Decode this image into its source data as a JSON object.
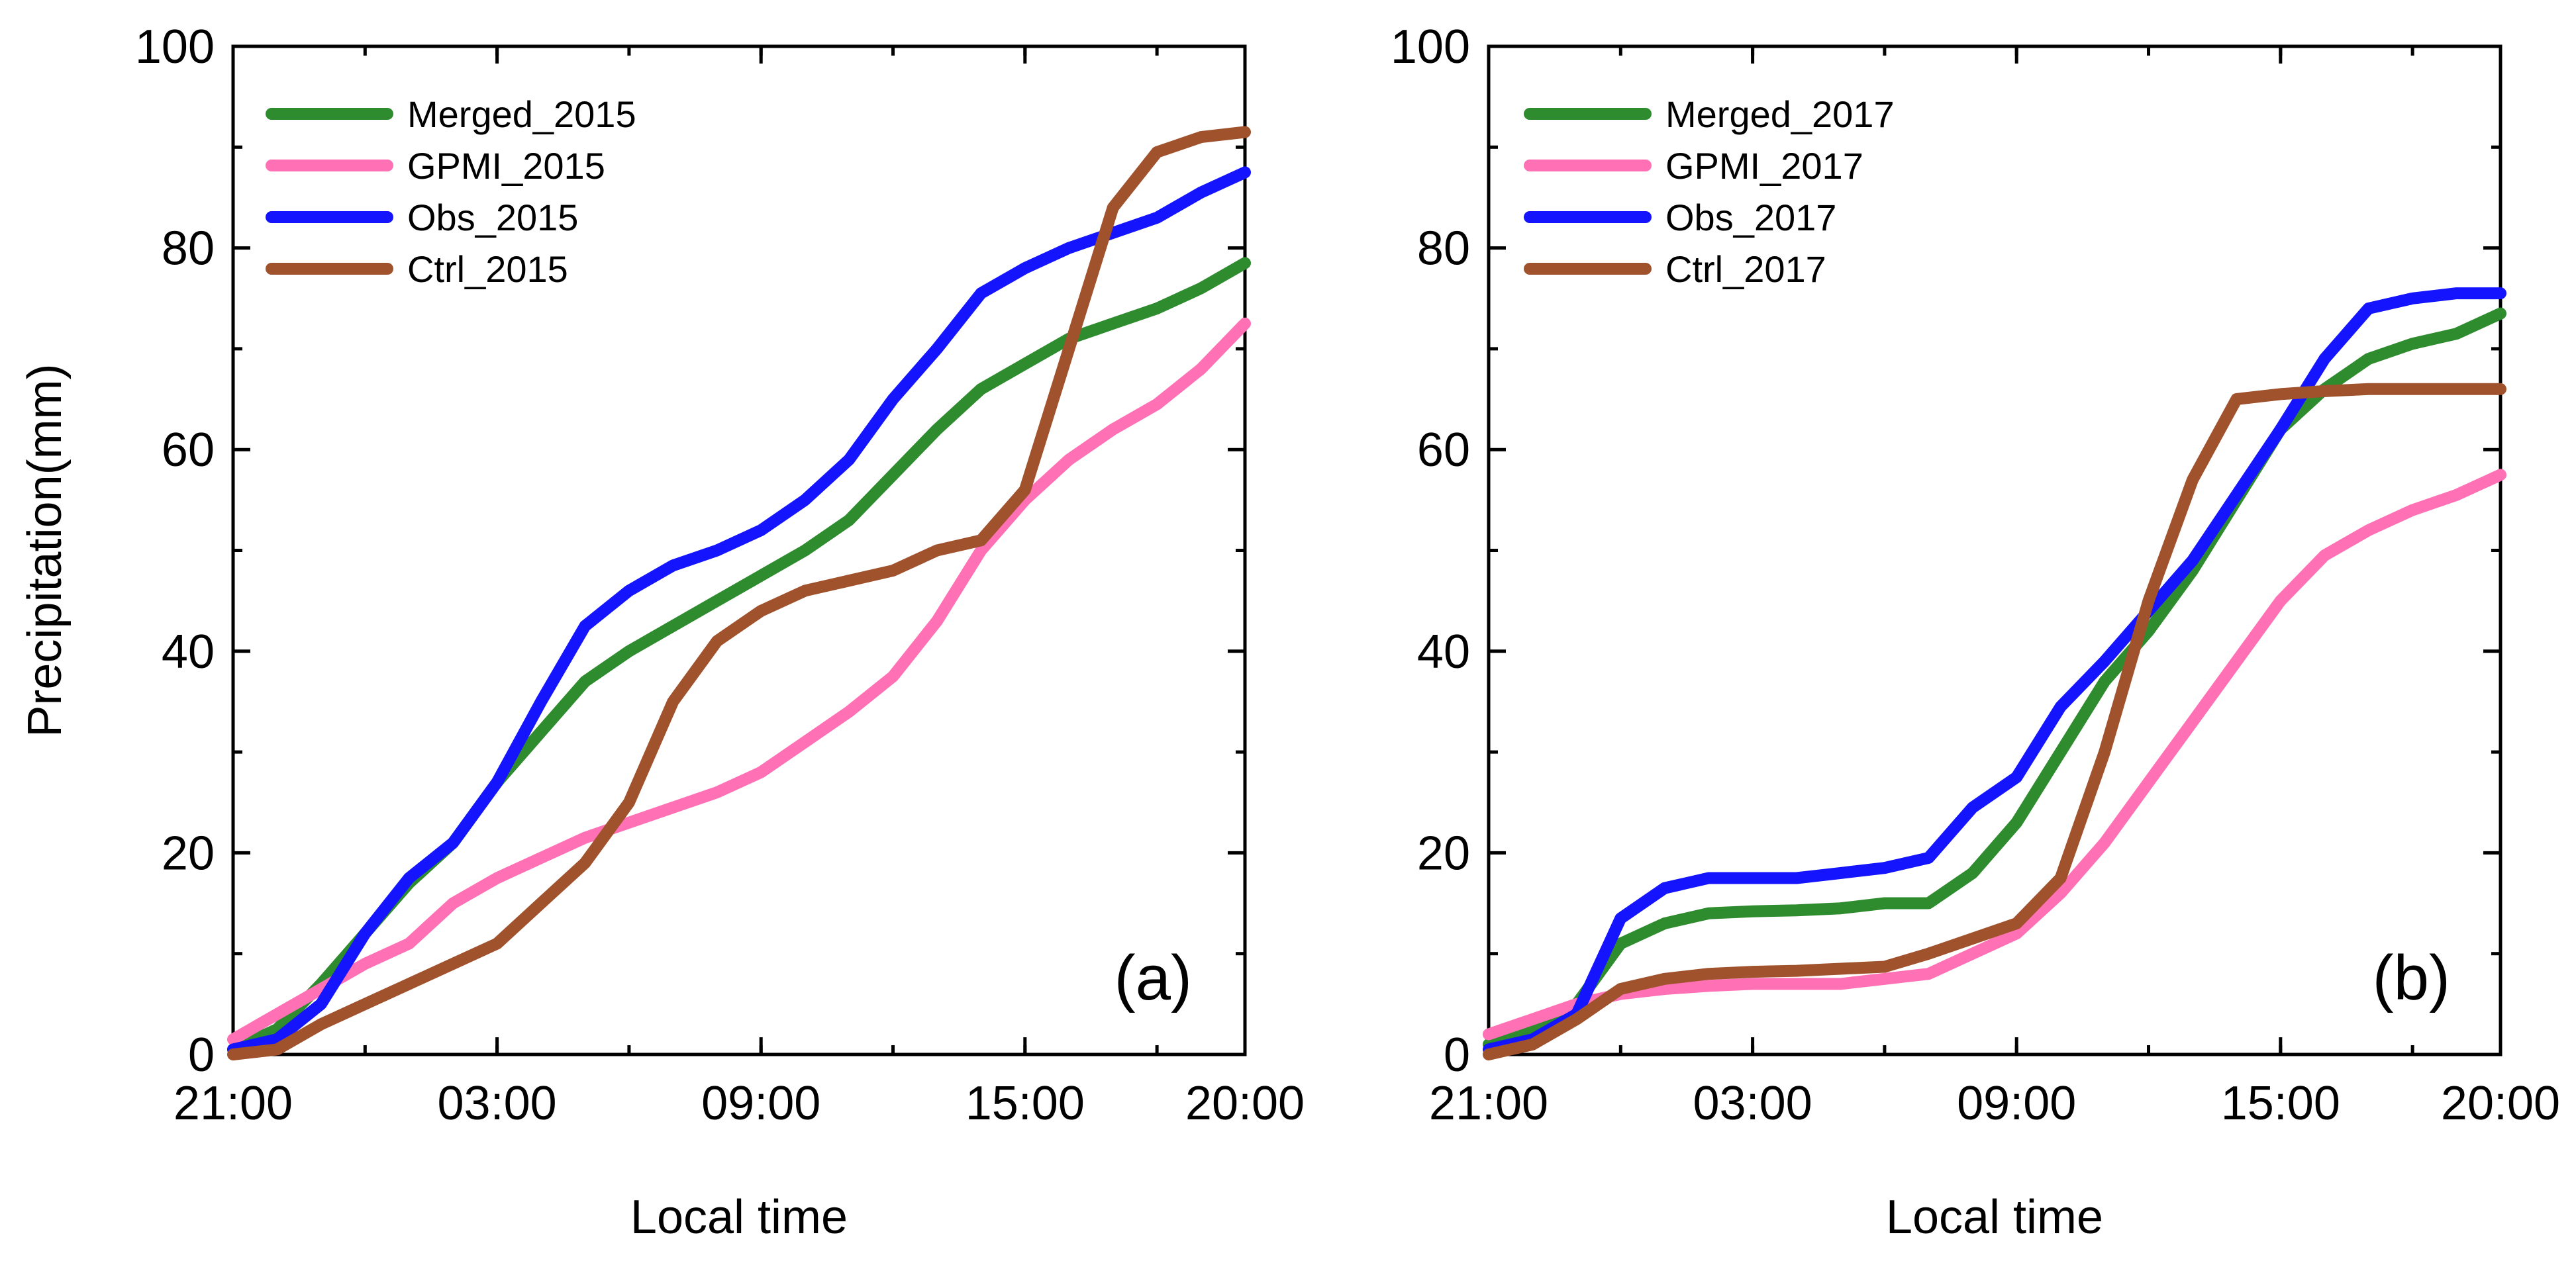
{
  "chart_data": [
    {
      "type": "line",
      "panel_label": "(a)",
      "xlabel": "Local time",
      "ylabel": "Precipitation(mm)",
      "ylim": [
        0,
        100
      ],
      "yticks": [
        0,
        20,
        40,
        60,
        80,
        100
      ],
      "xlim": [
        0,
        23
      ],
      "x_hours": [
        0,
        1,
        2,
        3,
        4,
        5,
        6,
        7,
        8,
        9,
        10,
        11,
        12,
        13,
        14,
        15,
        16,
        17,
        18,
        19,
        20,
        21,
        22,
        23
      ],
      "xtick_positions": [
        0,
        6,
        12,
        18,
        23
      ],
      "xtick_labels": [
        "21:00",
        "03:00",
        "09:00",
        "15:00",
        "20:00"
      ],
      "legend_position": "top-left",
      "series": [
        {
          "name": "Merged_2015",
          "color": "#2e8b2e",
          "values": [
            0.5,
            2.5,
            7,
            12,
            17,
            21,
            27,
            32,
            37,
            40,
            42.5,
            45,
            47.5,
            50,
            53,
            57.5,
            62,
            66,
            68.5,
            71,
            72.5,
            74,
            76,
            78.5
          ]
        },
        {
          "name": "GPMI_2015",
          "color": "#ff70b5",
          "values": [
            1.5,
            4,
            6.5,
            9,
            11,
            15,
            17.5,
            19.5,
            21.5,
            23,
            24.5,
            26,
            28,
            31,
            34,
            37.5,
            43,
            50,
            55,
            59,
            62,
            64.5,
            68,
            72.5
          ]
        },
        {
          "name": "Obs_2015",
          "color": "#1414ff",
          "values": [
            0.5,
            1.5,
            5,
            12,
            17.5,
            21,
            27,
            35,
            42.5,
            46,
            48.5,
            50,
            52,
            55,
            59,
            65,
            70,
            75.5,
            78,
            80,
            81.5,
            83,
            85.5,
            87.5
          ]
        },
        {
          "name": "Ctrl_2015",
          "color": "#a0522d",
          "values": [
            0,
            0.5,
            3,
            5,
            7,
            9,
            11,
            15,
            19,
            25,
            35,
            41,
            44,
            46,
            47,
            48,
            50,
            51,
            56,
            70,
            84,
            89.5,
            91,
            91.5
          ]
        }
      ]
    },
    {
      "type": "line",
      "panel_label": "(b)",
      "xlabel": "Local time",
      "ylabel": "",
      "ylim": [
        0,
        100
      ],
      "yticks": [
        0,
        20,
        40,
        60,
        80,
        100
      ],
      "xlim": [
        0,
        23
      ],
      "x_hours": [
        0,
        1,
        2,
        3,
        4,
        5,
        6,
        7,
        8,
        9,
        10,
        11,
        12,
        13,
        14,
        15,
        16,
        17,
        18,
        19,
        20,
        21,
        22,
        23
      ],
      "xtick_positions": [
        0,
        6,
        12,
        18,
        23
      ],
      "xtick_labels": [
        "21:00",
        "03:00",
        "09:00",
        "15:00",
        "20:00"
      ],
      "legend_position": "top-left",
      "series": [
        {
          "name": "Merged_2017",
          "color": "#2e8b2e",
          "values": [
            1,
            2.5,
            5,
            11,
            13,
            14,
            14.2,
            14.3,
            14.5,
            15,
            15,
            18,
            23,
            30,
            37,
            42,
            48,
            55,
            62,
            66,
            69,
            70.5,
            71.5,
            73.5
          ]
        },
        {
          "name": "GPMI_2017",
          "color": "#ff70b5",
          "values": [
            2,
            3.5,
            5,
            6,
            6.5,
            6.8,
            7,
            7,
            7,
            7.5,
            8,
            10,
            12,
            16,
            21,
            27,
            33,
            39,
            45,
            49.5,
            52,
            54,
            55.5,
            57.5
          ]
        },
        {
          "name": "Obs_2017",
          "color": "#1414ff",
          "values": [
            0.5,
            1.5,
            4,
            13.5,
            16.5,
            17.5,
            17.5,
            17.5,
            18,
            18.5,
            19.5,
            24.5,
            27.5,
            34.5,
            39,
            44,
            49,
            55.5,
            62,
            69,
            74,
            75,
            75.5,
            75.5
          ]
        },
        {
          "name": "Ctrl_2017",
          "color": "#a0522d",
          "values": [
            0,
            1,
            3.5,
            6.5,
            7.5,
            8,
            8.2,
            8.3,
            8.5,
            8.7,
            10,
            11.5,
            13,
            17.5,
            30,
            45,
            57,
            65,
            65.5,
            65.8,
            66,
            66,
            66,
            66
          ]
        }
      ]
    }
  ]
}
